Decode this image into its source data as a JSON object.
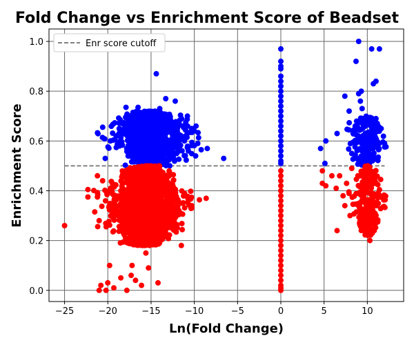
{
  "chart_data": {
    "type": "scatter",
    "title": "Fold Change vs Enrichment Score of Beadset",
    "xlabel": "Ln(Fold Change)",
    "ylabel": "Enrichment Score",
    "xlim": [
      -26.8,
      14.2
    ],
    "ylim": [
      -0.045,
      1.05
    ],
    "xticks": [
      -25,
      -20,
      -15,
      -10,
      -5,
      0,
      5,
      10
    ],
    "xtick_labels": [
      "−25",
      "−20",
      "−15",
      "−10",
      "−5",
      "0",
      "5",
      "10"
    ],
    "yticks": [
      0.0,
      0.2,
      0.4,
      0.6,
      0.8,
      1.0
    ],
    "ytick_labels": [
      "0.0",
      "0.2",
      "0.4",
      "0.6",
      "0.8",
      "1.0"
    ],
    "grid": true,
    "legend": {
      "placement": "upper-left",
      "entries": [
        "Enr score cutoff"
      ]
    },
    "cutoff": 0.5,
    "colors": {
      "above_cutoff": "#0000ff",
      "below_cutoff": "#ff0000",
      "cutoff_line": "#808080",
      "grid": "#666666"
    },
    "series": [
      {
        "color": "#0000ff",
        "points": [
          [
            -14.4,
            0.87
          ],
          [
            -16.5,
            0.735
          ],
          [
            -14.0,
            0.73
          ],
          [
            -13.3,
            0.77
          ],
          [
            -12.2,
            0.76
          ],
          [
            -17.9,
            0.735
          ],
          [
            -19.7,
            0.6
          ],
          [
            -20.3,
            0.53
          ],
          [
            -10.8,
            0.7
          ],
          [
            -10.3,
            0.65
          ],
          [
            -9.8,
            0.66
          ],
          [
            -9.6,
            0.59
          ],
          [
            -9.2,
            0.565
          ],
          [
            -8.5,
            0.57
          ],
          [
            -6.6,
            0.53
          ],
          [
            -18.7,
            0.63
          ],
          [
            -19.0,
            0.62
          ],
          [
            -13.0,
            0.68
          ],
          [
            -15.2,
            0.7
          ],
          [
            0.0,
            0.97
          ],
          [
            0.0,
            0.92
          ],
          [
            0.0,
            0.9
          ],
          [
            0.0,
            0.89
          ],
          [
            0.0,
            0.86
          ],
          [
            0.0,
            0.84
          ],
          [
            0.0,
            0.82
          ],
          [
            0.0,
            0.8
          ],
          [
            0.0,
            0.78
          ],
          [
            0.0,
            0.76
          ],
          [
            0.0,
            0.74
          ],
          [
            0.0,
            0.72
          ],
          [
            0.0,
            0.7
          ],
          [
            0.0,
            0.68
          ],
          [
            0.0,
            0.66
          ],
          [
            0.0,
            0.64
          ],
          [
            0.0,
            0.62
          ],
          [
            0.0,
            0.6
          ],
          [
            0.0,
            0.58
          ],
          [
            0.0,
            0.56
          ],
          [
            0.0,
            0.54
          ],
          [
            0.0,
            0.52
          ],
          [
            0.0,
            0.51
          ],
          [
            9.0,
            1.0
          ],
          [
            10.5,
            0.97
          ],
          [
            11.4,
            0.97
          ],
          [
            8.7,
            0.92
          ],
          [
            11.0,
            0.84
          ],
          [
            10.7,
            0.83
          ],
          [
            9.3,
            0.8
          ],
          [
            9.0,
            0.79
          ],
          [
            7.4,
            0.78
          ],
          [
            9.2,
            0.76
          ],
          [
            9.4,
            0.73
          ],
          [
            7.9,
            0.72
          ],
          [
            6.5,
            0.63
          ],
          [
            5.2,
            0.6
          ],
          [
            4.6,
            0.57
          ],
          [
            5.1,
            0.51
          ],
          [
            12.0,
            0.59
          ],
          [
            11.6,
            0.65
          ],
          [
            8.2,
            0.55
          ],
          [
            9.6,
            0.62
          ],
          [
            10.2,
            0.58
          ],
          [
            11.0,
            0.69
          ],
          [
            8.6,
            0.66
          ]
        ],
        "clusters": [
          {
            "cx": -15.0,
            "cy": 0.575,
            "sx": 2.2,
            "ymin": 0.5,
            "ymax": 0.72,
            "n": 950
          },
          {
            "cx": 9.8,
            "cy": 0.58,
            "sx": 1.1,
            "ymin": 0.5,
            "ymax": 0.7,
            "n": 200
          }
        ]
      },
      {
        "color": "#ff0000",
        "points": [
          [
            -25.0,
            0.26
          ],
          [
            -22.3,
            0.405
          ],
          [
            -22.3,
            0.375
          ],
          [
            -21.2,
            0.46
          ],
          [
            -20.6,
            0.44
          ],
          [
            -21.2,
            0.375
          ],
          [
            -21.0,
            0.28
          ],
          [
            -20.0,
            0.03
          ],
          [
            -19.3,
            0.01
          ],
          [
            -20.2,
            0.0
          ],
          [
            -21.0,
            0.0
          ],
          [
            -19.8,
            0.1
          ],
          [
            -17.3,
            0.06
          ],
          [
            -16.8,
            0.04
          ],
          [
            -16.1,
            0.02
          ],
          [
            -15.3,
            0.09
          ],
          [
            -14.2,
            0.03
          ],
          [
            -17.2,
            0.1
          ],
          [
            -18.5,
            0.05
          ],
          [
            -15.6,
            0.15
          ],
          [
            -10.3,
            0.34
          ],
          [
            -10.3,
            0.33
          ],
          [
            -11.5,
            0.18
          ],
          [
            -20.8,
            0.02
          ],
          [
            -17.8,
            0.0
          ],
          [
            0.0,
            0.48
          ],
          [
            0.0,
            0.46
          ],
          [
            0.0,
            0.44
          ],
          [
            0.0,
            0.42
          ],
          [
            0.0,
            0.4
          ],
          [
            0.0,
            0.38
          ],
          [
            0.0,
            0.36
          ],
          [
            0.0,
            0.34
          ],
          [
            0.0,
            0.32
          ],
          [
            0.0,
            0.3
          ],
          [
            0.0,
            0.28
          ],
          [
            0.0,
            0.26
          ],
          [
            0.0,
            0.24
          ],
          [
            0.0,
            0.22
          ],
          [
            0.0,
            0.2
          ],
          [
            0.0,
            0.18
          ],
          [
            0.0,
            0.16
          ],
          [
            0.0,
            0.14
          ],
          [
            0.0,
            0.12
          ],
          [
            0.0,
            0.1
          ],
          [
            0.0,
            0.08
          ],
          [
            0.0,
            0.06
          ],
          [
            0.0,
            0.04
          ],
          [
            0.0,
            0.02
          ],
          [
            0.0,
            0.01
          ],
          [
            0.0,
            0.0
          ],
          [
            4.8,
            0.48
          ],
          [
            4.8,
            0.43
          ],
          [
            5.2,
            0.42
          ],
          [
            5.9,
            0.46
          ],
          [
            6.4,
            0.41
          ],
          [
            6.8,
            0.46
          ],
          [
            6.5,
            0.24
          ],
          [
            7.4,
            0.34
          ],
          [
            7.2,
            0.38
          ],
          [
            8.0,
            0.3
          ],
          [
            10.0,
            0.24
          ],
          [
            10.3,
            0.2
          ],
          [
            10.8,
            0.24
          ],
          [
            7.6,
            0.43
          ],
          [
            8.2,
            0.49
          ]
        ],
        "clusters": [
          {
            "cx": -15.6,
            "cy": 0.37,
            "sx": 2.0,
            "ymin": 0.18,
            "ymax": 0.5,
            "n": 1900
          },
          {
            "cx": 10.0,
            "cy": 0.38,
            "sx": 0.9,
            "ymin": 0.22,
            "ymax": 0.5,
            "n": 260
          }
        ]
      }
    ]
  }
}
